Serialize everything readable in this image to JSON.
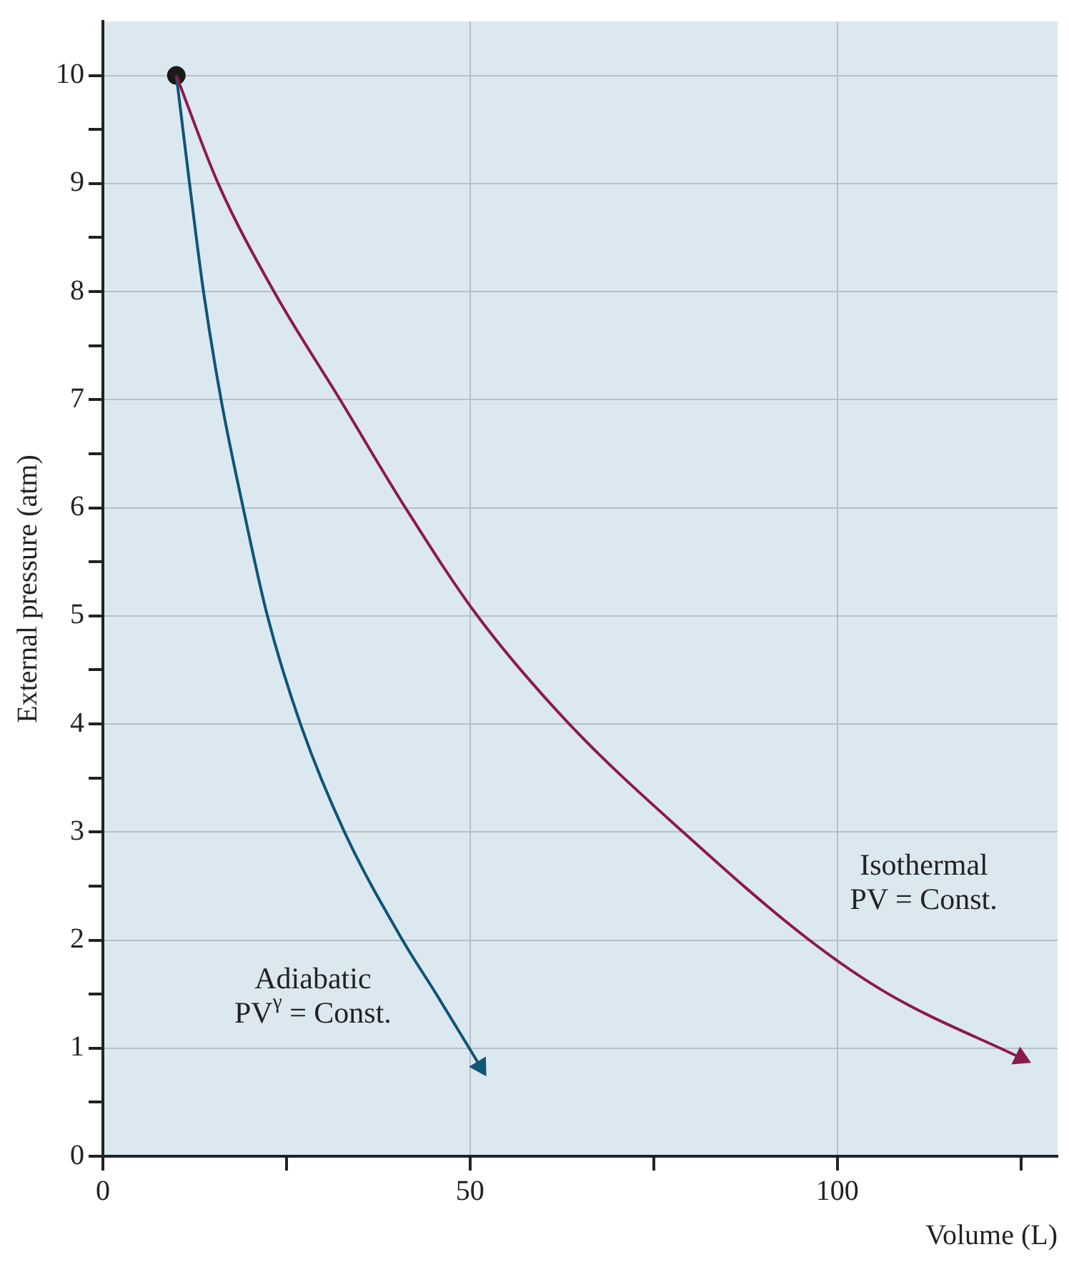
{
  "chart_data": {
    "type": "line",
    "xlabel": "Volume (L)",
    "ylabel": "External pressure (atm)",
    "xlim": [
      0,
      130
    ],
    "ylim": [
      0,
      10.5
    ],
    "xticks": [
      0,
      {
        "value": 25,
        "label": null
      },
      50,
      {
        "value": 75,
        "label": null
      },
      100,
      {
        "value": 125,
        "label": null
      }
    ],
    "yticks": [
      0,
      {
        "value": 0.5,
        "label": null
      },
      1,
      {
        "value": 1.5,
        "label": null
      },
      2,
      {
        "value": 2.5,
        "label": null
      },
      3,
      {
        "value": 3.5,
        "label": null
      },
      4,
      {
        "value": 4.5,
        "label": null
      },
      5,
      {
        "value": 5.5,
        "label": null
      },
      6,
      {
        "value": 6.5,
        "label": null
      },
      7,
      {
        "value": 7.5,
        "label": null
      },
      8,
      {
        "value": 8.5,
        "label": null
      },
      9,
      {
        "value": 9.5,
        "label": null
      },
      10
    ],
    "grid": true,
    "legend": false,
    "marker": "none",
    "line_style": "solid",
    "series": [
      {
        "type": "line",
        "color": "#8b1a4f",
        "x": [
          10,
          15.7,
          23.3,
          32.3,
          41.2,
          51,
          63.5,
          79,
          96.2,
          107,
          125
        ],
        "values": [
          10,
          9,
          8,
          7,
          6,
          5,
          4,
          3,
          2,
          1.5,
          0.91
        ]
      },
      {
        "type": "line",
        "color": "#0f5577",
        "x": [
          10,
          11.8,
          13.7,
          16.1,
          19.1,
          22.4,
          26.9,
          32.9,
          40.8,
          45.4,
          51.4
        ],
        "values": [
          10,
          9,
          8,
          7,
          6,
          5,
          4,
          3,
          2,
          1.5,
          0.83
        ]
      },
      {
        "type": "scatter",
        "color": "#1a1a1a",
        "marker": "circle",
        "x": [
          10
        ],
        "values": [
          10
        ]
      }
    ],
    "annotations": [
      "Adiabatic\nPV$^{γ}$ = Const.",
      "Isothermal\nPV = Const."
    ]
  }
}
